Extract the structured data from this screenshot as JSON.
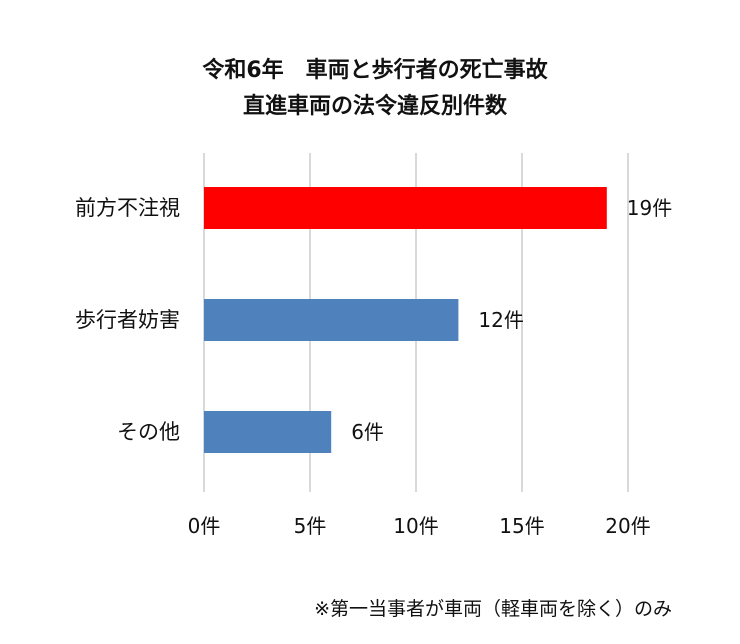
{
  "chart_data": {
    "type": "bar",
    "orientation": "horizontal",
    "title": [
      "令和6年　車両と歩行者の死亡事故",
      "直進車両の法令違反別件数"
    ],
    "categories": [
      "前方不注視",
      "歩行者妨害",
      "その他"
    ],
    "values": [
      19,
      12,
      6
    ],
    "data_labels": [
      "19件",
      "12件",
      "6件"
    ],
    "bar_colors": [
      "#ff0000",
      "#4f81bd",
      "#4f81bd"
    ],
    "x_ticks": [
      0,
      5,
      10,
      15,
      20
    ],
    "x_tick_labels": [
      "0件",
      "5件",
      "10件",
      "15件",
      "20件"
    ],
    "xlim": [
      0,
      20
    ],
    "grid": true,
    "legend": "none",
    "xlabel": "",
    "ylabel": ""
  },
  "footnote": "※第一当事者が車両（軽車両を除く）のみ",
  "colors": {
    "grid": "#d9d9d9",
    "text": "#111111",
    "highlight": "#ff0000",
    "standard": "#4f81bd"
  }
}
